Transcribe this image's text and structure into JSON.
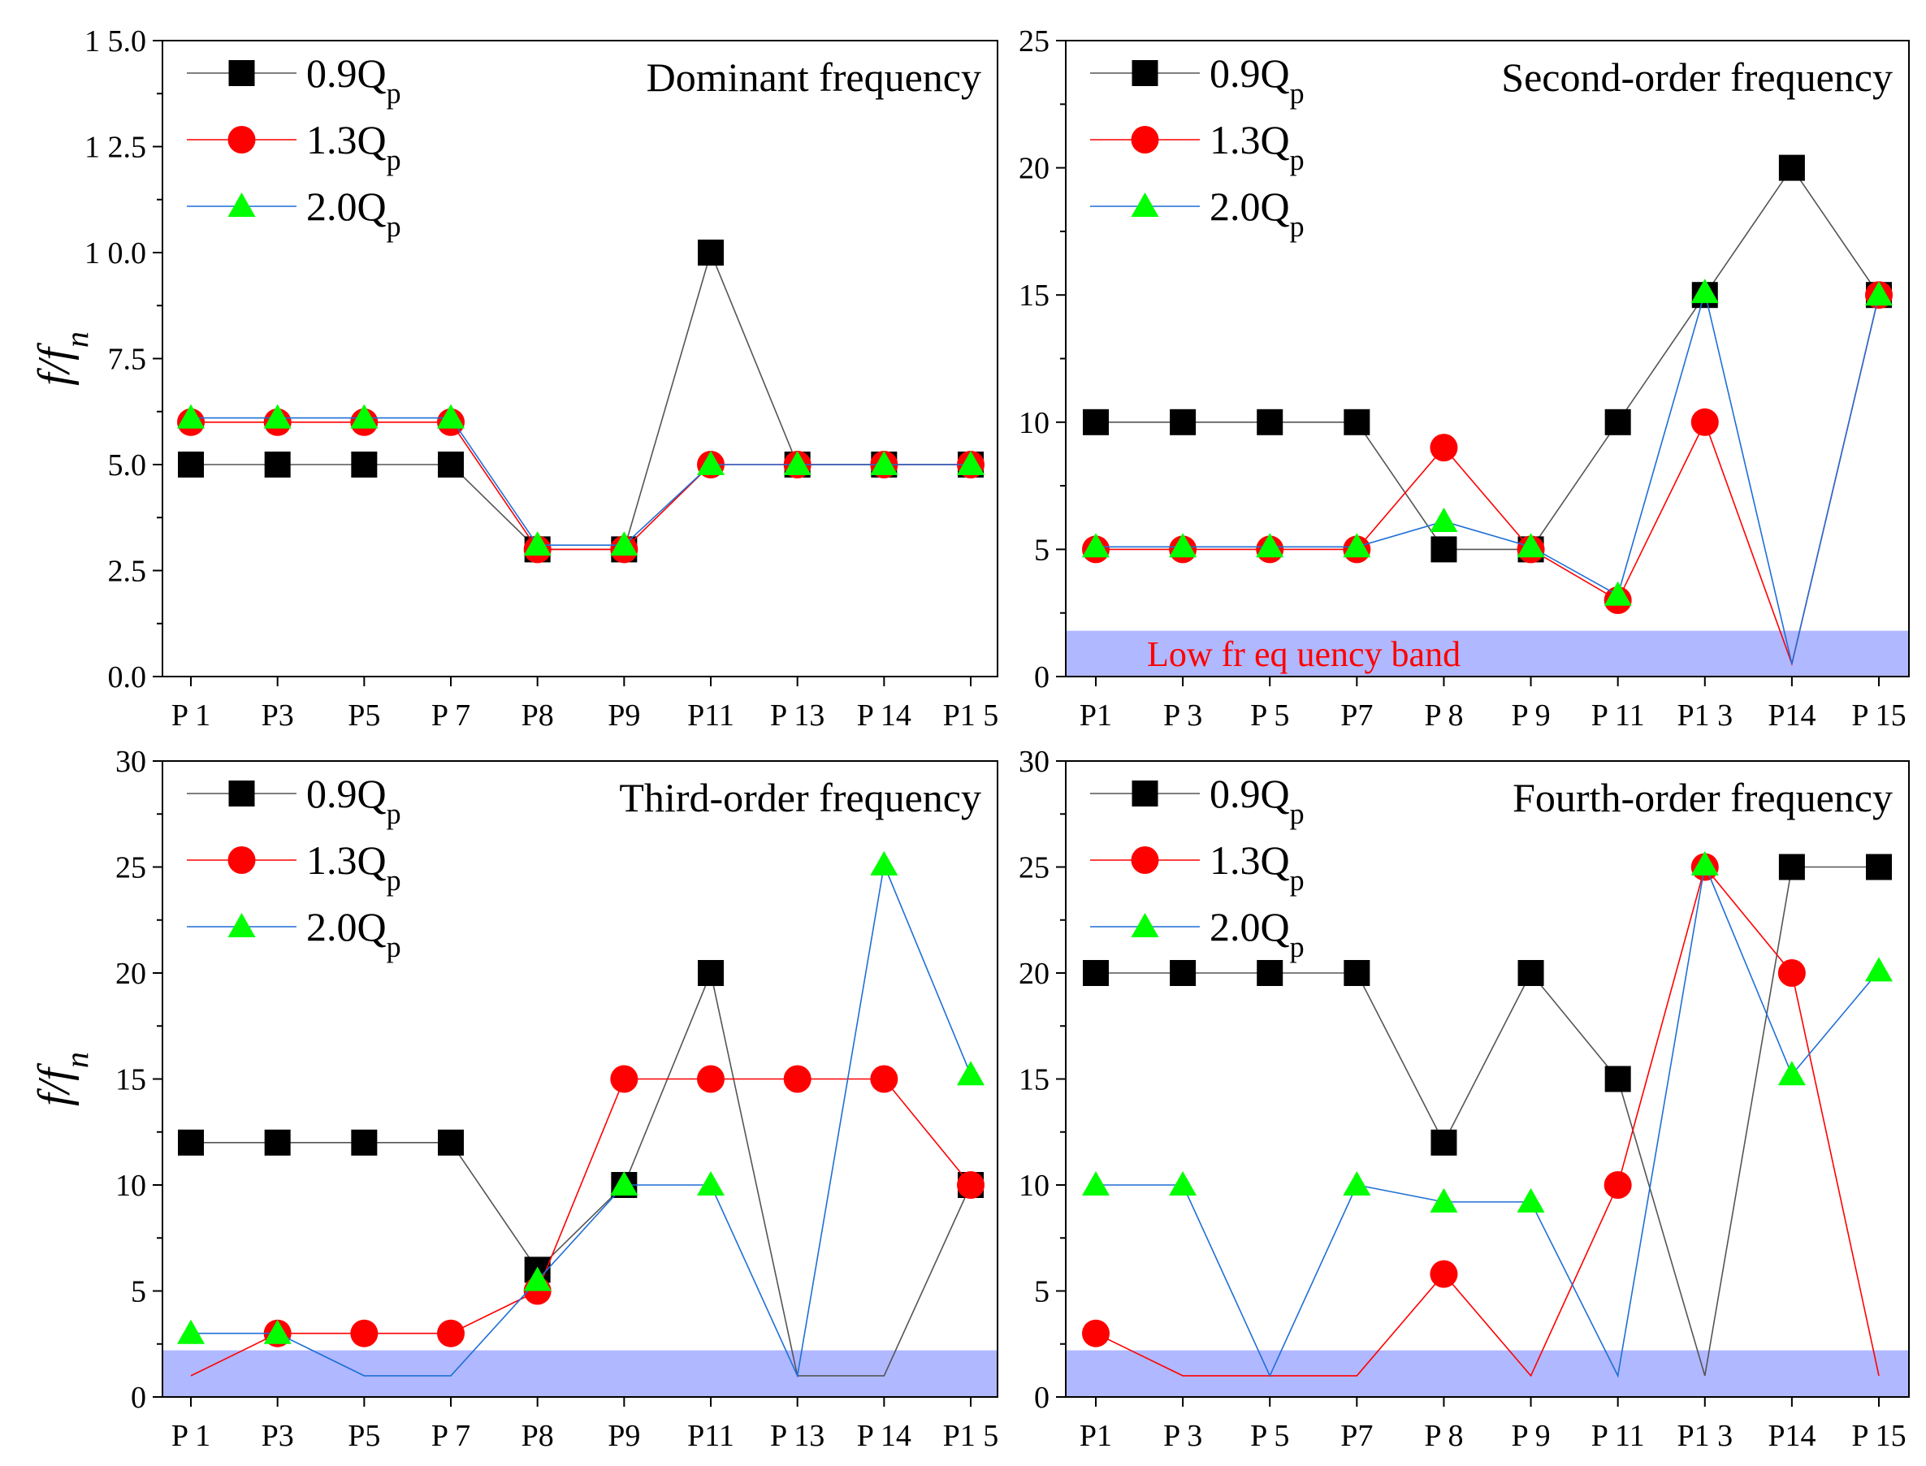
{
  "figure": {
    "ylabel": "f/f",
    "ylabel_sub": "n"
  },
  "legend": [
    {
      "name": "0.9Q",
      "sub": "p",
      "color": "#555555",
      "marker": "square",
      "fill": "#000000"
    },
    {
      "name": "1.3Q",
      "sub": "p",
      "color": "#ff0000",
      "marker": "circle",
      "fill": "#ff0000"
    },
    {
      "name": "2.0Q",
      "sub": "p",
      "color": "#1f6fd6",
      "marker": "triangle",
      "fill": "#00ff00"
    }
  ],
  "colors": {
    "band": "#b0b8ff",
    "axis": "#000000"
  },
  "chart_data": [
    {
      "type": "line",
      "title": "Dominant frequency",
      "categories": [
        "P1",
        "P3",
        "P5",
        "P7",
        "P8",
        "P9",
        "P11",
        "P13",
        "P14",
        "P15"
      ],
      "tick_labels": [
        "P 1",
        "P3",
        "P5",
        "P 7",
        "P8",
        "P9",
        "P11",
        "P 13",
        "P 14",
        "P1 5"
      ],
      "ylim": [
        0,
        15
      ],
      "yticks": [
        0,
        2.5,
        5,
        7.5,
        10,
        12.5,
        15
      ],
      "ytick_labels": [
        "0.0",
        "2.5",
        "5.0",
        "7.5",
        "1 0.0",
        "1 2.5",
        "1 5.0"
      ],
      "band": null,
      "band_label": null,
      "series": [
        {
          "name": "0.9Qp",
          "values": [
            5,
            5,
            5,
            5,
            3,
            3,
            10,
            5,
            5,
            5
          ]
        },
        {
          "name": "1.3Qp",
          "values": [
            6,
            6,
            6,
            6,
            3,
            3,
            5,
            5,
            5,
            5
          ]
        },
        {
          "name": "2.0Qp",
          "values": [
            6.1,
            6.1,
            6.1,
            6.1,
            3.1,
            3.1,
            5,
            5,
            5,
            5
          ]
        }
      ]
    },
    {
      "type": "line",
      "title": "Second-order frequency",
      "categories": [
        "P1",
        "P3",
        "P5",
        "P7",
        "P8",
        "P9",
        "P11",
        "P13",
        "P14",
        "P15"
      ],
      "tick_labels": [
        "P1",
        "P 3",
        "P 5",
        "P7",
        "P 8",
        "P 9",
        "P 11",
        "P1 3",
        "P14",
        "P 15"
      ],
      "ylim": [
        0,
        25
      ],
      "yticks": [
        0,
        5,
        10,
        15,
        20,
        25
      ],
      "ytick_labels": [
        "0",
        "5",
        "10",
        "15",
        "20",
        "25"
      ],
      "band": [
        0,
        1.8
      ],
      "band_label": "Low fr eq uency band",
      "series": [
        {
          "name": "0.9Qp",
          "values": [
            10,
            10,
            10,
            10,
            5,
            5,
            10,
            15,
            20,
            15
          ]
        },
        {
          "name": "1.3Qp",
          "values": [
            5,
            5,
            5,
            5,
            9,
            5,
            3,
            10,
            0.5,
            15
          ]
        },
        {
          "name": "2.0Qp",
          "values": [
            5.1,
            5.1,
            5.1,
            5.1,
            6.1,
            5.1,
            3.2,
            15.1,
            0.5,
            15
          ]
        }
      ]
    },
    {
      "type": "line",
      "title": "Third-order frequency",
      "categories": [
        "P1",
        "P3",
        "P5",
        "P7",
        "P8",
        "P9",
        "P11",
        "P13",
        "P14",
        "P15"
      ],
      "tick_labels": [
        "P 1",
        "P3",
        "P5",
        "P 7",
        "P8",
        "P9",
        "P11",
        "P 13",
        "P 14",
        "P1 5"
      ],
      "ylim": [
        0,
        30
      ],
      "yticks": [
        0,
        5,
        10,
        15,
        20,
        25,
        30
      ],
      "ytick_labels": [
        "0",
        "5",
        "10",
        "15",
        "20",
        "25",
        "30"
      ],
      "band": [
        0,
        2.2
      ],
      "band_label": null,
      "series": [
        {
          "name": "0.9Qp",
          "values": [
            12,
            12,
            12,
            12,
            6,
            10,
            20,
            1,
            1,
            10
          ]
        },
        {
          "name": "1.3Qp",
          "values": [
            1,
            3,
            3,
            3,
            5,
            15,
            15,
            15,
            15,
            10
          ]
        },
        {
          "name": "2.0Qp",
          "values": [
            3,
            3,
            1,
            1,
            5.5,
            10,
            10,
            1,
            25.1,
            15.2
          ]
        }
      ]
    },
    {
      "type": "line",
      "title": "Fourth-order frequency",
      "categories": [
        "P1",
        "P3",
        "P5",
        "P7",
        "P8",
        "P9",
        "P11",
        "P13",
        "P14",
        "P15"
      ],
      "tick_labels": [
        "P1",
        "P 3",
        "P 5",
        "P7",
        "P 8",
        "P 9",
        "P 11",
        "P1 3",
        "P14",
        "P 15"
      ],
      "ylim": [
        0,
        30
      ],
      "yticks": [
        0,
        5,
        10,
        15,
        20,
        25,
        30
      ],
      "ytick_labels": [
        "0",
        "5",
        "10",
        "15",
        "20",
        "25",
        "30"
      ],
      "band": [
        0,
        2.2
      ],
      "band_label": null,
      "series": [
        {
          "name": "0.9Qp",
          "values": [
            20,
            20,
            20,
            20,
            12,
            20,
            15,
            1,
            25,
            25
          ]
        },
        {
          "name": "1.3Qp",
          "values": [
            3,
            1,
            1,
            1,
            5.8,
            1,
            10,
            25,
            20,
            1
          ]
        },
        {
          "name": "2.0Qp",
          "values": [
            10,
            10,
            1,
            10,
            9.2,
            9.2,
            1,
            25.1,
            15.2,
            20.1
          ]
        }
      ]
    }
  ]
}
